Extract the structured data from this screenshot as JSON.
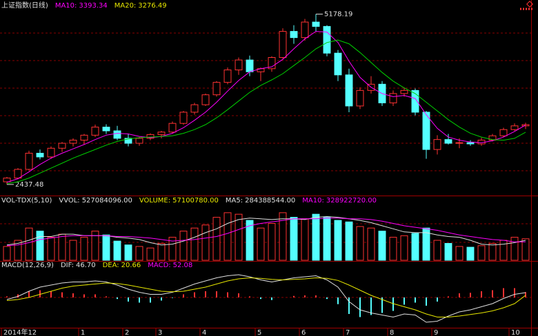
{
  "chart_data": [
    {
      "type": "candlestick",
      "title": "上证指数(日线)",
      "legend": [
        {
          "name": "MA10:",
          "value": 3393.34,
          "color": "#ff00ff"
        },
        {
          "name": "MA20:",
          "value": 3276.49,
          "color": "#e8e800"
        }
      ],
      "categories": [
        "2014年12",
        null,
        null,
        null,
        null,
        null,
        null,
        "1",
        null,
        null,
        null,
        "2",
        null,
        null,
        "3",
        null,
        null,
        null,
        "4",
        null,
        null,
        null,
        null,
        "5",
        null,
        null,
        null,
        "6",
        null,
        null,
        null,
        "7",
        null,
        null,
        null,
        "8",
        null,
        null,
        null,
        "9",
        null,
        null,
        null,
        null,
        null,
        null,
        "10",
        null
      ],
      "open": [
        2480,
        2540,
        2680,
        2940,
        2880,
        3020,
        3100,
        3150,
        3230,
        3360,
        3300,
        3180,
        3100,
        3180,
        3240,
        3280,
        3420,
        3600,
        3720,
        3880,
        4080,
        4280,
        4440,
        4250,
        4300,
        4480,
        4900,
        4800,
        5050,
        4980,
        4550,
        4200,
        3700,
        3950,
        4050,
        3750,
        3900,
        3950,
        3600,
        3000,
        3160,
        3100,
        3110,
        3090,
        3150,
        3220,
        3320,
        3380
      ],
      "high": [
        2560,
        2700,
        2980,
        3000,
        3050,
        3120,
        3180,
        3250,
        3400,
        3406,
        3380,
        3250,
        3200,
        3260,
        3300,
        3450,
        3620,
        3750,
        3900,
        4100,
        4320,
        4480,
        4510,
        4320,
        4500,
        4950,
        5000,
        5100,
        5178.19,
        5000,
        4600,
        4300,
        4000,
        4180,
        4100,
        3950,
        4000,
        3980,
        3620,
        3230,
        3250,
        3180,
        3150,
        3190,
        3250,
        3350,
        3420,
        3430
      ],
      "low": [
        2437.48,
        2520,
        2660,
        2840,
        2850,
        2960,
        3050,
        3080,
        3200,
        3250,
        3150,
        3050,
        3060,
        3150,
        3180,
        3260,
        3400,
        3560,
        3700,
        3850,
        4050,
        4200,
        4180,
        4100,
        4250,
        4460,
        4700,
        4750,
        4900,
        4500,
        4100,
        3600,
        3650,
        3900,
        3700,
        3700,
        3850,
        3550,
        2850,
        2920,
        3080,
        3020,
        3060,
        3060,
        3130,
        3200,
        3300,
        3330
      ],
      "close": [
        2540,
        2680,
        2940,
        2880,
        3020,
        3100,
        3150,
        3230,
        3360,
        3300,
        3180,
        3100,
        3180,
        3240,
        3280,
        3420,
        3600,
        3720,
        3880,
        4080,
        4280,
        4440,
        4250,
        4300,
        4480,
        4900,
        4800,
        5050,
        4980,
        4550,
        4200,
        3700,
        3950,
        4050,
        3750,
        3900,
        3950,
        3600,
        3000,
        3160,
        3100,
        3110,
        3090,
        3150,
        3220,
        3320,
        3380,
        3400
      ],
      "up_color": "#ff3232",
      "down_color": "#54ffff",
      "series": [
        {
          "name": "MA10",
          "color": "#ff00ff",
          "values": [
            2470,
            2530,
            2640,
            2760,
            2860,
            2940,
            3010,
            3080,
            3160,
            3230,
            3260,
            3250,
            3210,
            3190,
            3210,
            3260,
            3350,
            3470,
            3600,
            3760,
            3940,
            4110,
            4250,
            4300,
            4330,
            4450,
            4620,
            4780,
            4900,
            4890,
            4720,
            4420,
            4160,
            4000,
            3900,
            3850,
            3870,
            3820,
            3560,
            3340,
            3200,
            3150,
            3120,
            3110,
            3140,
            3200,
            3290,
            3393.34
          ]
        },
        {
          "name": "MA20",
          "color": "#00d000",
          "values": [
            2450,
            2480,
            2540,
            2620,
            2700,
            2780,
            2860,
            2930,
            3000,
            3070,
            3130,
            3170,
            3190,
            3200,
            3210,
            3220,
            3260,
            3320,
            3400,
            3510,
            3640,
            3780,
            3920,
            4030,
            4120,
            4220,
            4350,
            4480,
            4620,
            4720,
            4760,
            4700,
            4560,
            4400,
            4240,
            4100,
            3990,
            3900,
            3760,
            3620,
            3480,
            3360,
            3260,
            3200,
            3160,
            3150,
            3180,
            3276.49
          ]
        }
      ],
      "ylim": [
        2270,
        5250
      ]
    },
    {
      "type": "bar",
      "title": "VOL-TDX(5,10)",
      "legend": [
        {
          "name": "VVOL:",
          "value": 527084096,
          "label": "527084096.00",
          "color": "#e0e0e0"
        },
        {
          "name": "VOLUME:",
          "value": 57100780,
          "label": "57100780.00",
          "color": "#e8e800"
        },
        {
          "name": "MA5:",
          "value": 284388544,
          "label": "284388544.00",
          "color": "#e0e0e0"
        },
        {
          "name": "MA10:",
          "value": 328922720,
          "label": "328922720.00",
          "color": "#ff00ff"
        }
      ],
      "values": [
        180000000,
        260000000,
        420000000,
        380000000,
        300000000,
        340000000,
        260000000,
        300000000,
        380000000,
        330000000,
        250000000,
        200000000,
        180000000,
        160000000,
        220000000,
        300000000,
        380000000,
        420000000,
        460000000,
        560000000,
        620000000,
        600000000,
        520000000,
        420000000,
        480000000,
        620000000,
        560000000,
        540000000,
        600000000,
        560000000,
        520000000,
        500000000,
        440000000,
        420000000,
        380000000,
        300000000,
        320000000,
        350000000,
        420000000,
        260000000,
        220000000,
        180000000,
        170000000,
        190000000,
        220000000,
        260000000,
        300000000,
        280000000
      ],
      "up_color": "#ff3232",
      "down_color": "#54ffff",
      "series": [
        {
          "name": "MA5",
          "color": "#e0e0e0",
          "values": [
            200000000,
            220000000,
            260000000,
            310000000,
            310000000,
            340000000,
            340000000,
            320000000,
            320000000,
            320000000,
            300000000,
            290000000,
            270000000,
            230000000,
            200000000,
            210000000,
            250000000,
            300000000,
            360000000,
            410000000,
            480000000,
            530000000,
            550000000,
            540000000,
            530000000,
            540000000,
            540000000,
            530000000,
            560000000,
            570000000,
            560000000,
            540000000,
            520000000,
            490000000,
            450000000,
            410000000,
            370000000,
            360000000,
            360000000,
            330000000,
            310000000,
            300000000,
            260000000,
            210000000,
            200000000,
            210000000,
            230000000,
            260000000
          ]
        },
        {
          "name": "MA10",
          "color": "#ff00ff",
          "values": [
            190000000,
            200000000,
            230000000,
            270000000,
            290000000,
            310000000,
            320000000,
            320000000,
            320000000,
            320000000,
            310000000,
            310000000,
            300000000,
            290000000,
            270000000,
            250000000,
            260000000,
            270000000,
            290000000,
            310000000,
            350000000,
            400000000,
            450000000,
            480000000,
            500000000,
            520000000,
            540000000,
            540000000,
            540000000,
            550000000,
            550000000,
            540000000,
            540000000,
            530000000,
            510000000,
            480000000,
            450000000,
            430000000,
            410000000,
            390000000,
            360000000,
            330000000,
            310000000,
            290000000,
            270000000,
            260000000,
            240000000,
            240000000
          ]
        }
      ],
      "ylim": [
        0,
        700000000
      ]
    },
    {
      "type": "macd",
      "title": "MACD(12,26,9)",
      "legend": [
        {
          "name": "DIF:",
          "value": 46.7,
          "label": "46.70",
          "color": "#e0e0e0"
        },
        {
          "name": "DEA:",
          "value": 20.66,
          "color": "#e8e800"
        },
        {
          "name": "MACD:",
          "value": 52.08,
          "color": "#ff00ff"
        }
      ],
      "values": [
        10,
        30,
        60,
        70,
        60,
        50,
        40,
        30,
        30,
        10,
        -15,
        -40,
        -50,
        -50,
        -30,
        -5,
        30,
        50,
        60,
        60,
        50,
        40,
        10,
        -15,
        -25,
        0,
        15,
        20,
        20,
        -15,
        -65,
        -160,
        -190,
        -170,
        -150,
        -130,
        -70,
        -50,
        -80,
        -40,
        10,
        40,
        45,
        60,
        70,
        90,
        90,
        52.08
      ],
      "up_color": "#ff3232",
      "down_color": "#54ffff",
      "series": [
        {
          "name": "DIF",
          "color": "#e0e0e0",
          "values": [
            -20,
            10,
            60,
            100,
            120,
            140,
            150,
            150,
            160,
            150,
            120,
            80,
            50,
            30,
            30,
            50,
            90,
            130,
            160,
            190,
            210,
            220,
            200,
            170,
            150,
            170,
            190,
            200,
            210,
            170,
            100,
            -40,
            -120,
            -150,
            -170,
            -190,
            -160,
            -170,
            -240,
            -230,
            -180,
            -140,
            -120,
            -90,
            -60,
            -10,
            30,
            46.7
          ]
        },
        {
          "name": "DEA",
          "color": "#e8e800",
          "values": [
            -30,
            -20,
            0,
            30,
            60,
            90,
            110,
            120,
            130,
            140,
            135,
            120,
            100,
            80,
            60,
            55,
            60,
            80,
            100,
            130,
            160,
            180,
            190,
            185,
            175,
            170,
            175,
            180,
            190,
            185,
            165,
            120,
            70,
            20,
            -20,
            -60,
            -90,
            -120,
            -160,
            -190,
            -190,
            -180,
            -165,
            -150,
            -130,
            -100,
            -60,
            20.66
          ]
        }
      ],
      "ylim": [
        -280,
        260
      ]
    }
  ]
}
